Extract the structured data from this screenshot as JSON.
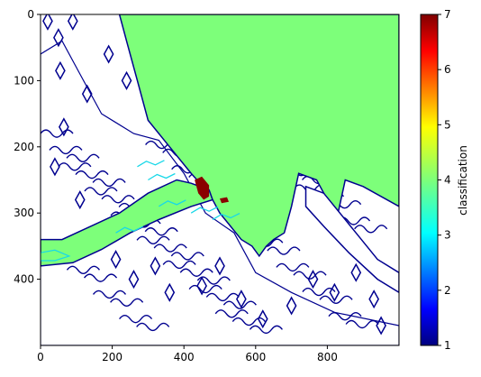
{
  "chart_data": {
    "type": "heatmap",
    "title": "",
    "xlabel": "",
    "ylabel": "",
    "xlim": [
      0,
      1000
    ],
    "ylim": [
      500,
      0
    ],
    "x_ticks": [
      0,
      200,
      400,
      600,
      800
    ],
    "y_ticks": [
      0,
      100,
      200,
      300,
      400
    ],
    "colorbar": {
      "label": "classification",
      "range": [
        1,
        7
      ],
      "ticks": [
        1,
        2,
        3,
        4,
        5,
        6,
        7
      ],
      "colormap": "jet"
    },
    "regions": {
      "background": {
        "class": "nan",
        "color": "#ffffff"
      },
      "water": {
        "class": 4,
        "color": "#7dff7a"
      },
      "edges": {
        "class": 1,
        "color": "#00008f"
      },
      "edges_light": {
        "class": 3,
        "color": "#18d8e8"
      },
      "anomaly": {
        "class": 7,
        "color": "#8a0000"
      }
    }
  }
}
